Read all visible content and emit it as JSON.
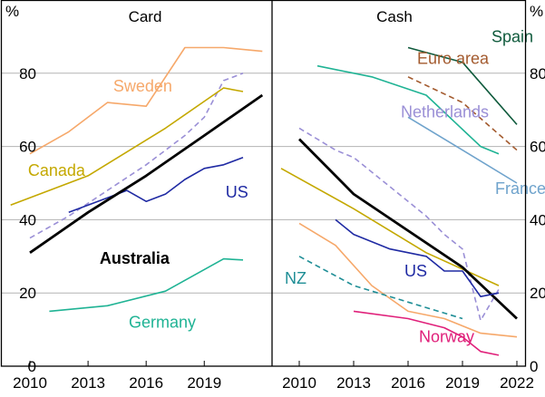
{
  "colors": {
    "frame": "#000000",
    "grid": "#b3b3b3",
    "australia": "#000000",
    "sweden": "#f6a86a",
    "netherlands": "#9a8fd6",
    "canada": "#c4a800",
    "us": "#1f2aa3",
    "germany": "#1fb394",
    "spain": "#0f5a3c",
    "euro_area": "#a35a2e",
    "france": "#6fa3cc",
    "nz": "#1f8e96",
    "norway": "#e0207a"
  },
  "chart_data": [
    {
      "type": "line",
      "title": "Card",
      "xlabel": "",
      "ylabel": "%",
      "xlim": [
        2008.5,
        2022.5
      ],
      "ylim": [
        0,
        100
      ],
      "xticks": [
        "2010",
        "2013",
        "2016",
        "2019"
      ],
      "yticks": [
        "0",
        "20",
        "40",
        "60",
        "80"
      ],
      "grid": true,
      "series": [
        {
          "name": "Sweden",
          "color_key": "sweden",
          "style": "solid",
          "width": 1.6,
          "x": [
            2010,
            2012,
            2014,
            2016,
            2018,
            2020,
            2022
          ],
          "y": [
            58,
            64,
            72,
            71,
            87,
            87,
            86
          ]
        },
        {
          "name": "Netherlands",
          "color_key": "netherlands",
          "style": "dashed",
          "width": 1.6,
          "labeled": false,
          "x": [
            2010,
            2012,
            2014,
            2016,
            2018,
            2019,
            2020,
            2021
          ],
          "y": [
            35,
            41,
            48,
            55,
            63,
            68,
            78,
            80
          ]
        },
        {
          "name": "Canada",
          "color_key": "canada",
          "style": "solid",
          "width": 1.6,
          "x": [
            2009,
            2013,
            2017,
            2020,
            2021
          ],
          "y": [
            44,
            52,
            65,
            76,
            75
          ]
        },
        {
          "name": "US",
          "color_key": "us",
          "style": "solid",
          "width": 1.6,
          "x": [
            2012,
            2014,
            2015,
            2016,
            2017,
            2018,
            2019,
            2020,
            2021
          ],
          "y": [
            42,
            46,
            48,
            45,
            47,
            51,
            54,
            55,
            57
          ]
        },
        {
          "name": "Australia",
          "color_key": "australia",
          "style": "solid",
          "width": 2.8,
          "x": [
            2010,
            2013,
            2016,
            2019,
            2022
          ],
          "y": [
            31,
            42,
            52,
            63,
            74
          ]
        },
        {
          "name": "Germany",
          "color_key": "germany",
          "style": "solid",
          "width": 1.6,
          "x": [
            2011,
            2014,
            2017,
            2020,
            2021
          ],
          "y": [
            15,
            16.5,
            20.5,
            29.3,
            29
          ]
        }
      ],
      "labels": [
        {
          "name": "Sweden",
          "color_key": "sweden",
          "x": 2014.3,
          "y": 75,
          "bold": false
        },
        {
          "name": "Netherlands",
          "color_key": "netherlands",
          "x": 2017.5,
          "y": 79,
          "bold": false,
          "shown": false
        },
        {
          "name": "Canada",
          "color_key": "canada",
          "x": 2009.9,
          "y": 52,
          "bold": false
        },
        {
          "name": "US",
          "color_key": "us",
          "x": 2020.1,
          "y": 46,
          "bold": false
        },
        {
          "name": "Australia",
          "color_key": "australia",
          "x": 2013.6,
          "y": 28,
          "bold": true
        },
        {
          "name": "Germany",
          "color_key": "germany",
          "x": 2015.1,
          "y": 10.5,
          "bold": false
        }
      ]
    },
    {
      "type": "line",
      "title": "Cash",
      "xlabel": "",
      "ylabel": "%",
      "xlim": [
        2008.5,
        2022.5
      ],
      "ylim": [
        0,
        100
      ],
      "xticks": [
        "2010",
        "2013",
        "2016",
        "2019",
        "2022"
      ],
      "yticks": [
        "0",
        "20",
        "40",
        "60",
        "80"
      ],
      "grid": true,
      "series": [
        {
          "name": "Spain",
          "color_key": "spain",
          "style": "solid",
          "width": 1.6,
          "x": [
            2016,
            2019,
            2022
          ],
          "y": [
            87,
            83,
            66
          ]
        },
        {
          "name": "Euro area",
          "color_key": "euro_area",
          "style": "dashed",
          "width": 1.6,
          "x": [
            2016,
            2019,
            2022
          ],
          "y": [
            79,
            72,
            59
          ]
        },
        {
          "name": "Netherlands",
          "color_key": "netherlands",
          "style": "dashed",
          "width": 1.6,
          "x": [
            2010,
            2012,
            2013,
            2015,
            2017,
            2018,
            2019,
            2020,
            2021
          ],
          "y": [
            65,
            59,
            57,
            49,
            41,
            36,
            32,
            12.5,
            21
          ]
        },
        {
          "name": "Germany",
          "color_key": "germany",
          "style": "solid",
          "width": 1.6,
          "x": [
            2011,
            2014,
            2017,
            2020,
            2021
          ],
          "y": [
            82,
            79,
            74,
            60,
            58
          ]
        },
        {
          "name": "France",
          "color_key": "france",
          "style": "solid",
          "width": 1.6,
          "x": [
            2016,
            2019,
            2022
          ],
          "y": [
            68,
            59,
            50
          ]
        },
        {
          "name": "Canada",
          "color_key": "canada",
          "style": "solid",
          "width": 1.6,
          "x": [
            2009,
            2013,
            2017,
            2021
          ],
          "y": [
            54,
            43,
            31,
            22
          ]
        },
        {
          "name": "Australia",
          "color_key": "australia",
          "style": "solid",
          "width": 2.8,
          "x": [
            2010,
            2013,
            2016,
            2019,
            2022
          ],
          "y": [
            62,
            47,
            37,
            27,
            13
          ]
        },
        {
          "name": "US",
          "color_key": "us",
          "style": "solid",
          "width": 1.6,
          "x": [
            2012,
            2013,
            2015,
            2017,
            2018,
            2019,
            2020,
            2021
          ],
          "y": [
            40,
            36,
            32,
            30,
            26,
            26,
            19,
            20
          ]
        },
        {
          "name": "Sweden",
          "color_key": "sweden",
          "style": "solid",
          "width": 1.6,
          "labeled": false,
          "x": [
            2010,
            2012,
            2014,
            2016,
            2018,
            2020,
            2022
          ],
          "y": [
            39,
            33,
            22,
            15,
            13,
            9,
            8
          ]
        },
        {
          "name": "NZ",
          "color_key": "nz",
          "style": "dashed",
          "width": 1.6,
          "x": [
            2010,
            2013,
            2019
          ],
          "y": [
            30,
            22,
            13
          ]
        },
        {
          "name": "Norway",
          "color_key": "norway",
          "style": "solid",
          "width": 1.6,
          "x": [
            2013,
            2016,
            2018,
            2019,
            2020,
            2021
          ],
          "y": [
            15,
            13,
            10.5,
            8,
            4,
            3
          ]
        }
      ],
      "labels": [
        {
          "name": "Spain",
          "color_key": "spain",
          "x": 2020.6,
          "y": 88.5,
          "bold": false
        },
        {
          "name": "Euro area",
          "color_key": "euro_area",
          "x": 2016.5,
          "y": 82.5,
          "bold": false
        },
        {
          "name": "Netherlands",
          "color_key": "netherlands",
          "x": 2015.6,
          "y": 68,
          "bold": false
        },
        {
          "name": "France",
          "color_key": "france",
          "x": 2020.8,
          "y": 47,
          "bold": false
        },
        {
          "name": "US",
          "color_key": "us",
          "x": 2015.8,
          "y": 24.5,
          "bold": false
        },
        {
          "name": "NZ",
          "color_key": "nz",
          "x": 2009.2,
          "y": 22.5,
          "bold": false
        },
        {
          "name": "Norway",
          "color_key": "norway",
          "x": 2016.6,
          "y": 6.5,
          "bold": false
        }
      ]
    }
  ]
}
